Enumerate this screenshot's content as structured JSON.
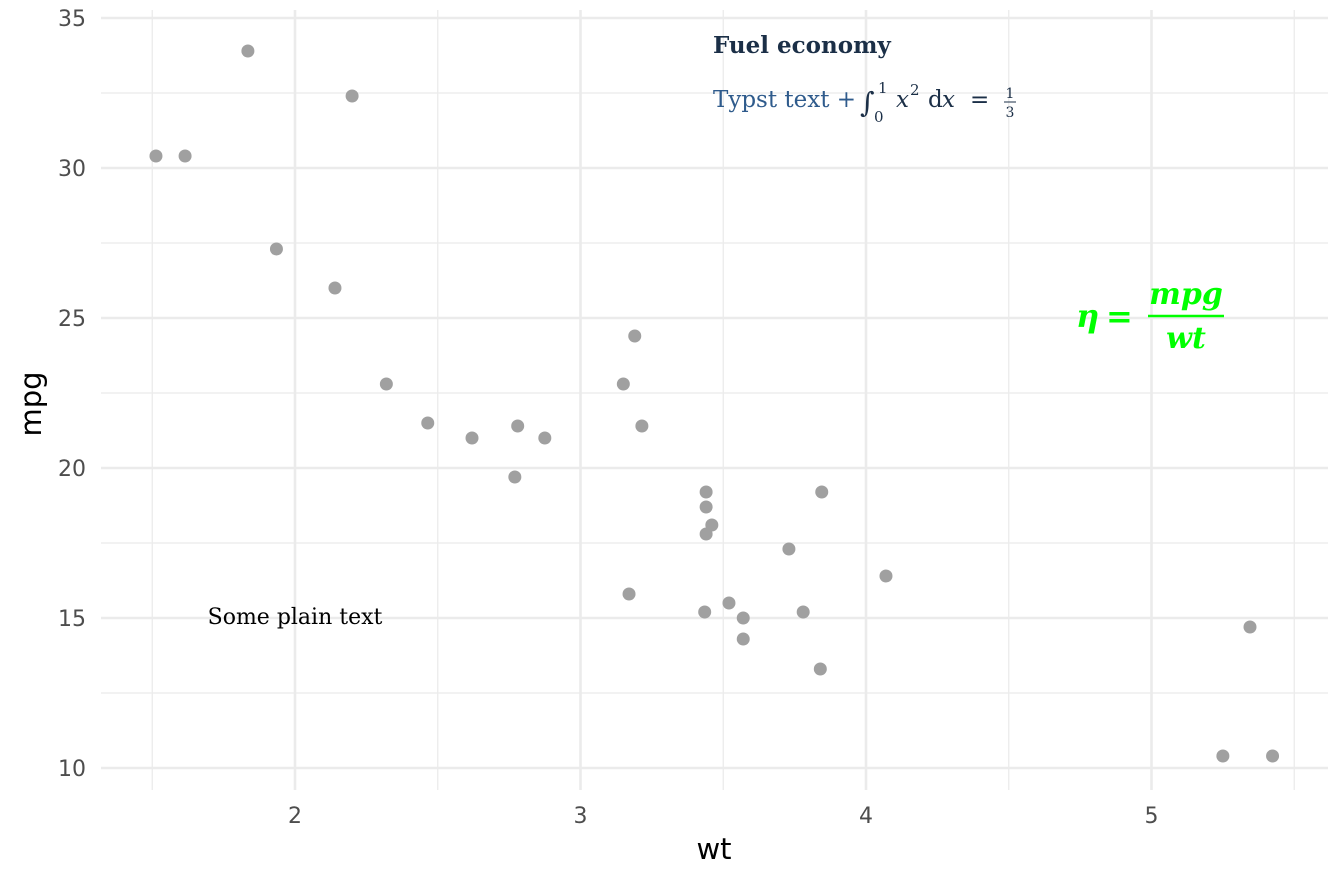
{
  "chart_data": {
    "type": "scatter",
    "xlabel": "wt",
    "ylabel": "mpg",
    "xlim": [
      1.35,
      5.6
    ],
    "ylim": [
      9.4,
      35.3
    ],
    "x_ticks": [
      2,
      3,
      4,
      5
    ],
    "y_ticks": [
      10,
      15,
      20,
      25,
      30,
      35
    ],
    "grid": true,
    "point_color": "#a0a0a0",
    "points": [
      {
        "x": 1.513,
        "y": 30.4
      },
      {
        "x": 1.615,
        "y": 30.4
      },
      {
        "x": 1.835,
        "y": 33.9
      },
      {
        "x": 1.935,
        "y": 27.3
      },
      {
        "x": 2.14,
        "y": 26.0
      },
      {
        "x": 2.2,
        "y": 32.4
      },
      {
        "x": 2.32,
        "y": 22.8
      },
      {
        "x": 2.465,
        "y": 21.5
      },
      {
        "x": 2.62,
        "y": 21.0
      },
      {
        "x": 2.77,
        "y": 19.7
      },
      {
        "x": 2.78,
        "y": 21.4
      },
      {
        "x": 2.875,
        "y": 21.0
      },
      {
        "x": 3.15,
        "y": 22.8
      },
      {
        "x": 3.17,
        "y": 15.8
      },
      {
        "x": 3.19,
        "y": 24.4
      },
      {
        "x": 3.215,
        "y": 21.4
      },
      {
        "x": 3.435,
        "y": 15.2
      },
      {
        "x": 3.44,
        "y": 19.2
      },
      {
        "x": 3.44,
        "y": 18.7
      },
      {
        "x": 3.44,
        "y": 17.8
      },
      {
        "x": 3.46,
        "y": 18.1
      },
      {
        "x": 3.52,
        "y": 15.5
      },
      {
        "x": 3.57,
        "y": 15.0
      },
      {
        "x": 3.57,
        "y": 14.3
      },
      {
        "x": 3.73,
        "y": 17.3
      },
      {
        "x": 3.78,
        "y": 15.2
      },
      {
        "x": 3.84,
        "y": 13.3
      },
      {
        "x": 3.845,
        "y": 19.2
      },
      {
        "x": 4.07,
        "y": 16.4
      },
      {
        "x": 5.25,
        "y": 10.4
      },
      {
        "x": 5.345,
        "y": 14.7
      },
      {
        "x": 5.424,
        "y": 10.4
      }
    ],
    "annotations": {
      "title": "Fuel economy",
      "subtitle_text": "Typst text +",
      "integral_symbol": "∫",
      "integral_upper": "1",
      "integral_lower": "0",
      "integrand": "x",
      "integrand_power": "2",
      "integrand_d": "d",
      "integrand_var": "x",
      "equals": "=",
      "frac_num": "1",
      "frac_den": "3",
      "plain_text": "Some plain text",
      "eq_lhs": "η",
      "eq_equals": "=",
      "eq_num": "mpg",
      "eq_den": "wt",
      "eq_color": "#00ff00",
      "title_color": "#1b2f47",
      "subtitle_color": "#2f5b8c"
    }
  }
}
